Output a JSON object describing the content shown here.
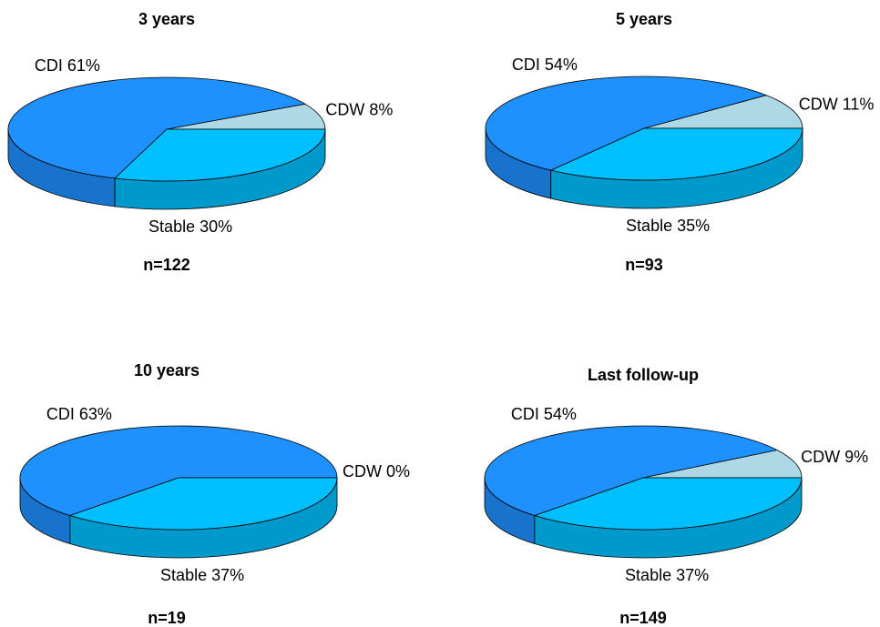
{
  "chart_data": [
    {
      "type": "pie",
      "title": "3 years",
      "categories": [
        "CDW",
        "CDI",
        "Stable"
      ],
      "values": [
        8,
        61,
        30
      ],
      "value_labels": [
        "8%",
        "61%",
        "30%"
      ],
      "colors": [
        "#add8e6",
        "#1e90ff",
        "#00bfff"
      ],
      "annotation": "n=122"
    },
    {
      "type": "pie",
      "title": "5 years",
      "categories": [
        "CDW",
        "CDI",
        "Stable"
      ],
      "values": [
        11,
        54,
        35
      ],
      "value_labels": [
        "11%",
        "54%",
        "35%"
      ],
      "colors": [
        "#add8e6",
        "#1e90ff",
        "#00bfff"
      ],
      "annotation": "n=93"
    },
    {
      "type": "pie",
      "title": "10 years",
      "categories": [
        "CDW",
        "CDI",
        "Stable"
      ],
      "values": [
        0,
        63,
        37
      ],
      "value_labels": [
        "0%",
        "63%",
        "37%"
      ],
      "colors": [
        "#add8e6",
        "#1e90ff",
        "#00bfff"
      ],
      "annotation": "n=19"
    },
    {
      "type": "pie",
      "title": "Last follow-up",
      "categories": [
        "CDW",
        "CDI",
        "Stable"
      ],
      "values": [
        9,
        54,
        37
      ],
      "value_labels": [
        "9%",
        "54%",
        "37%"
      ],
      "colors": [
        "#add8e6",
        "#1e90ff",
        "#00bfff"
      ],
      "annotation": "n=149"
    }
  ]
}
